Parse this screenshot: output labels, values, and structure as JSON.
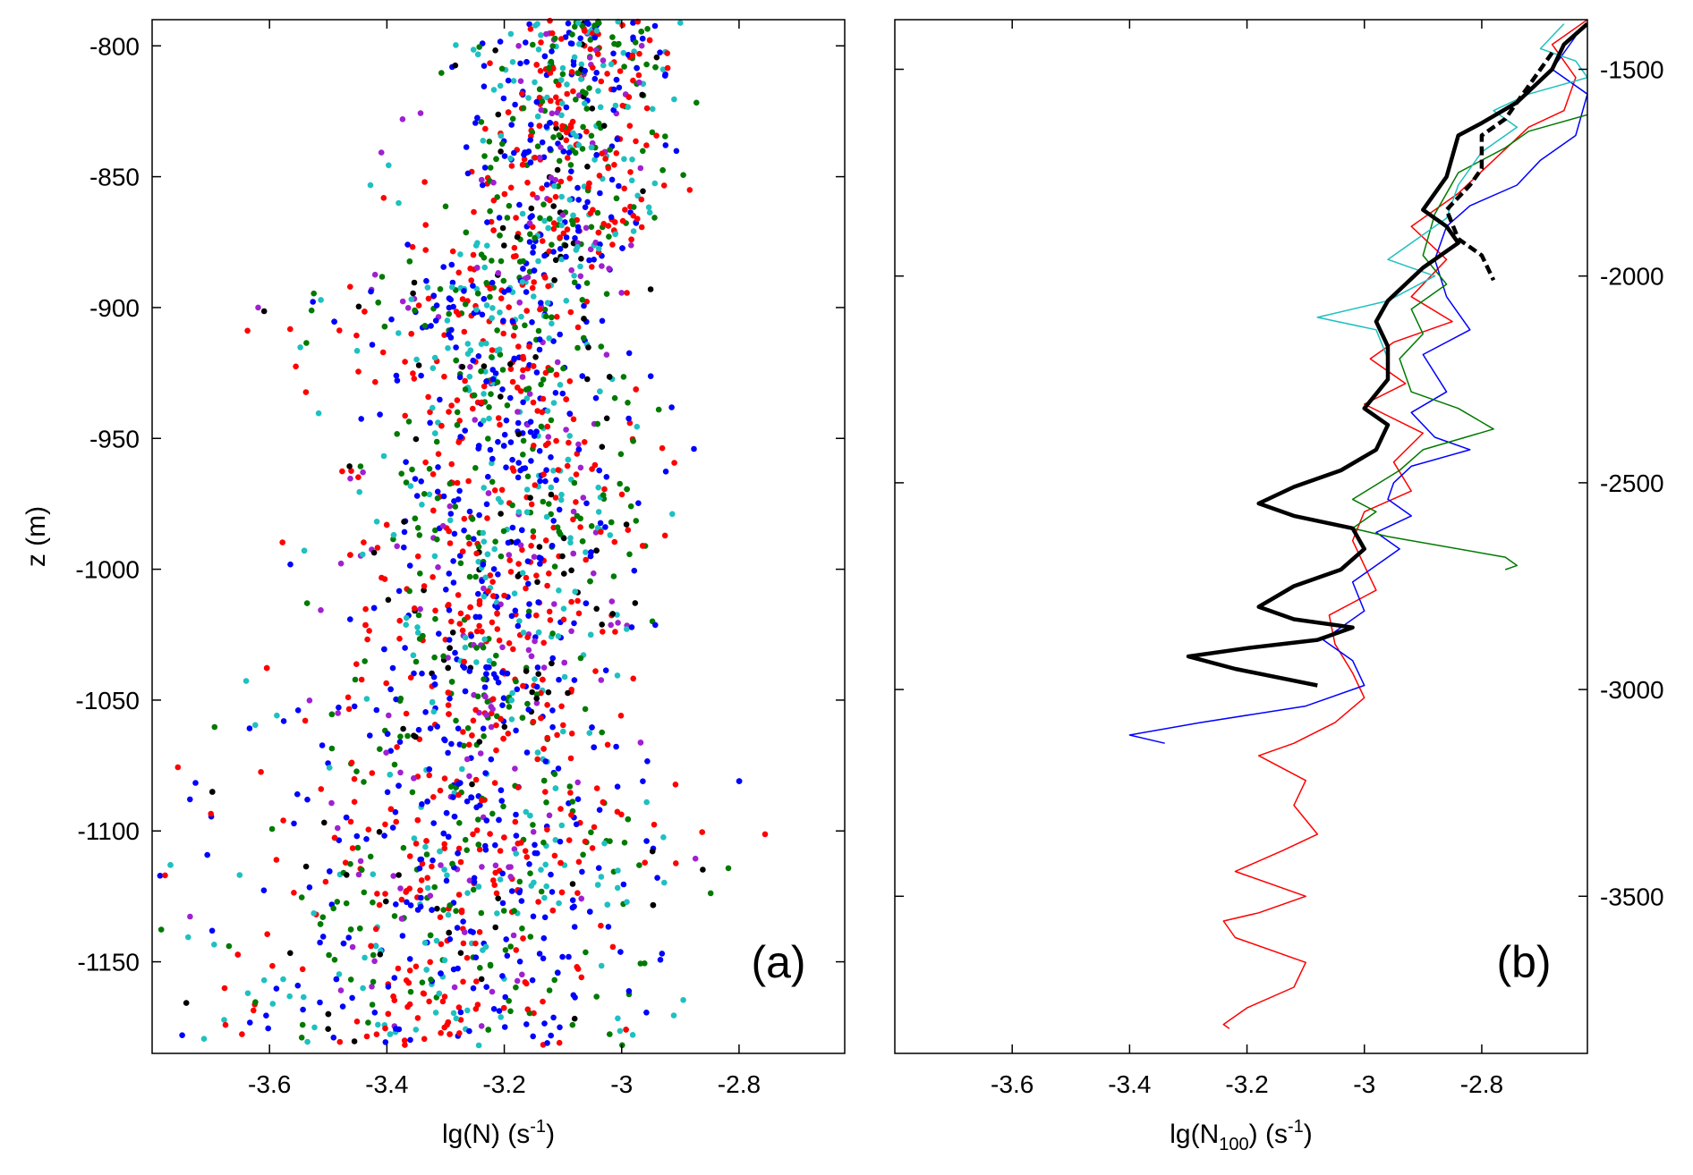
{
  "colors": {
    "black": "#000000",
    "red": "#ff0000",
    "blue": "#0000ff",
    "green": "#007a00",
    "cyan": "#1ec0c0",
    "magenta": "#a020d0"
  },
  "chart_data": [
    {
      "type": "scatter",
      "panel_label": "(a)",
      "xlabel": {
        "main": "lg(N)",
        "unit_pre": " (s",
        "unit_sup": "-1",
        "unit_post": ")"
      },
      "ylabel": "z (m)",
      "xlim": [
        -3.8,
        -2.62
      ],
      "ylim": [
        -1185,
        -790
      ],
      "xticks": [
        -3.6,
        -3.4,
        -3.2,
        -3.0,
        -2.8
      ],
      "xtick_labels": [
        "-3.6",
        "-3.4",
        "-3.2",
        "-3",
        "-2.8"
      ],
      "yticks": [
        -800,
        -850,
        -900,
        -950,
        -1000,
        -1050,
        -1100,
        -1150
      ],
      "ytick_labels": [
        "-800",
        "-850",
        "-900",
        "-950",
        "-1000",
        "-1050",
        "-1100",
        "-1150"
      ],
      "series_colors": [
        "red",
        "blue",
        "green",
        "cyan",
        "magenta",
        "black"
      ],
      "profile": {
        "z": [
          -790,
          -800,
          -820,
          -840,
          -850,
          -870,
          -880,
          -900,
          -920,
          -940,
          -950,
          -970,
          -1000,
          -1020,
          -1040,
          -1060,
          -1070,
          -1090,
          -1100,
          -1120,
          -1140,
          -1160,
          -1180
        ],
        "center": [
          -3.02,
          -3.05,
          -3.07,
          -3.1,
          -3.1,
          -3.08,
          -3.12,
          -3.22,
          -3.22,
          -3.15,
          -3.15,
          -3.15,
          -3.2,
          -3.2,
          -3.2,
          -3.22,
          -3.25,
          -3.2,
          -3.2,
          -3.22,
          -3.22,
          -3.3,
          -3.3
        ],
        "spread": [
          0.12,
          0.12,
          0.14,
          0.16,
          0.16,
          0.12,
          0.12,
          0.2,
          0.18,
          0.18,
          0.18,
          0.2,
          0.2,
          0.2,
          0.2,
          0.22,
          0.24,
          0.26,
          0.28,
          0.3,
          0.32,
          0.34,
          0.34
        ]
      }
    },
    {
      "type": "line",
      "panel_label": "(b)",
      "xlabel": {
        "main": "lg(N",
        "main_sub": "100",
        "unit_pre": ") (s",
        "unit_sup": "-1",
        "unit_post": ")"
      },
      "xlim": [
        -3.8,
        -2.62
      ],
      "ylim": [
        -3880,
        -1380
      ],
      "xticks": [
        -3.6,
        -3.4,
        -3.2,
        -3.0,
        -2.8
      ],
      "xtick_labels": [
        "-3.6",
        "-3.4",
        "-3.2",
        "-3",
        "-2.8"
      ],
      "yticks": [
        -1500,
        -2000,
        -2500,
        -3000,
        -3500
      ],
      "ytick_labels": [
        "-1500",
        "-2000",
        "-2500",
        "-3000",
        "-3500"
      ],
      "series": [
        {
          "name": "red",
          "color": "red",
          "width": 1.5,
          "dashed": false,
          "points": [
            [
              -2.62,
              -1380
            ],
            [
              -2.68,
              -1440
            ],
            [
              -2.64,
              -1520
            ],
            [
              -2.66,
              -1600
            ],
            [
              -2.72,
              -1640
            ],
            [
              -2.78,
              -1720
            ],
            [
              -2.84,
              -1800
            ],
            [
              -2.92,
              -1880
            ],
            [
              -2.86,
              -1960
            ],
            [
              -2.92,
              -2050
            ],
            [
              -2.85,
              -2110
            ],
            [
              -2.95,
              -2160
            ],
            [
              -2.99,
              -2200
            ],
            [
              -2.93,
              -2260
            ],
            [
              -3.0,
              -2310
            ],
            [
              -2.9,
              -2380
            ],
            [
              -2.95,
              -2450
            ],
            [
              -2.92,
              -2520
            ],
            [
              -3.0,
              -2570
            ],
            [
              -3.02,
              -2640
            ],
            [
              -3.0,
              -2700
            ],
            [
              -2.98,
              -2760
            ],
            [
              -3.06,
              -2820
            ],
            [
              -3.05,
              -2890
            ],
            [
              -3.02,
              -2960
            ],
            [
              -3.0,
              -3020
            ],
            [
              -3.05,
              -3080
            ],
            [
              -3.12,
              -3130
            ],
            [
              -3.18,
              -3160
            ],
            [
              -3.1,
              -3220
            ],
            [
              -3.12,
              -3280
            ],
            [
              -3.08,
              -3350
            ],
            [
              -3.14,
              -3390
            ],
            [
              -3.22,
              -3440
            ],
            [
              -3.1,
              -3500
            ],
            [
              -3.18,
              -3540
            ],
            [
              -3.24,
              -3560
            ],
            [
              -3.22,
              -3600
            ],
            [
              -3.1,
              -3660
            ],
            [
              -3.12,
              -3720
            ],
            [
              -3.2,
              -3770
            ],
            [
              -3.24,
              -3810
            ],
            [
              -3.23,
              -3820
            ]
          ]
        },
        {
          "name": "blue",
          "color": "blue",
          "width": 1.5,
          "dashed": false,
          "points": [
            [
              -2.64,
              -1420
            ],
            [
              -2.68,
              -1500
            ],
            [
              -2.62,
              -1560
            ],
            [
              -2.64,
              -1660
            ],
            [
              -2.7,
              -1720
            ],
            [
              -2.74,
              -1780
            ],
            [
              -2.82,
              -1830
            ],
            [
              -2.86,
              -1880
            ],
            [
              -2.88,
              -1960
            ],
            [
              -2.86,
              -2050
            ],
            [
              -2.82,
              -2130
            ],
            [
              -2.9,
              -2190
            ],
            [
              -2.86,
              -2280
            ],
            [
              -2.92,
              -2330
            ],
            [
              -2.88,
              -2390
            ],
            [
              -2.82,
              -2420
            ],
            [
              -2.92,
              -2460
            ],
            [
              -2.95,
              -2500
            ],
            [
              -2.96,
              -2540
            ],
            [
              -2.92,
              -2580
            ],
            [
              -2.98,
              -2620
            ],
            [
              -2.94,
              -2660
            ],
            [
              -2.98,
              -2700
            ],
            [
              -3.02,
              -2740
            ],
            [
              -3.0,
              -2810
            ],
            [
              -3.07,
              -2880
            ],
            [
              -3.02,
              -2930
            ],
            [
              -3.0,
              -2990
            ],
            [
              -3.1,
              -3040
            ],
            [
              -3.28,
              -3080
            ],
            [
              -3.4,
              -3110
            ],
            [
              -3.34,
              -3130
            ]
          ]
        },
        {
          "name": "green",
          "color": "green",
          "width": 1.5,
          "dashed": false,
          "points": [
            [
              -2.62,
              -1610
            ],
            [
              -2.72,
              -1650
            ],
            [
              -2.76,
              -1690
            ],
            [
              -2.84,
              -1750
            ],
            [
              -2.88,
              -1850
            ],
            [
              -2.9,
              -1950
            ],
            [
              -2.86,
              -2020
            ],
            [
              -2.92,
              -2080
            ],
            [
              -2.9,
              -2140
            ],
            [
              -2.94,
              -2200
            ],
            [
              -2.92,
              -2280
            ],
            [
              -2.84,
              -2320
            ],
            [
              -2.78,
              -2370
            ],
            [
              -2.9,
              -2420
            ],
            [
              -2.94,
              -2470
            ],
            [
              -3.02,
              -2540
            ],
            [
              -2.98,
              -2570
            ],
            [
              -3.02,
              -2610
            ],
            [
              -2.96,
              -2630
            ],
            [
              -2.76,
              -2680
            ],
            [
              -2.74,
              -2700
            ],
            [
              -2.76,
              -2710
            ]
          ]
        },
        {
          "name": "cyan",
          "color": "cyan",
          "width": 1.5,
          "dashed": false,
          "points": [
            [
              -2.66,
              -1390
            ],
            [
              -2.7,
              -1450
            ],
            [
              -2.64,
              -1480
            ],
            [
              -2.62,
              -1520
            ],
            [
              -2.72,
              -1560
            ],
            [
              -2.78,
              -1600
            ],
            [
              -2.74,
              -1640
            ],
            [
              -2.8,
              -1700
            ],
            [
              -2.84,
              -1780
            ],
            [
              -2.86,
              -1860
            ],
            [
              -2.92,
              -1920
            ],
            [
              -2.96,
              -1960
            ],
            [
              -2.88,
              -2000
            ],
            [
              -2.96,
              -2060
            ],
            [
              -3.08,
              -2100
            ],
            [
              -2.98,
              -2130
            ],
            [
              -2.96,
              -2200
            ]
          ]
        },
        {
          "name": "black-bold",
          "color": "black",
          "width": 4.5,
          "dashed": false,
          "points": [
            [
              -2.62,
              -1390
            ],
            [
              -2.66,
              -1440
            ],
            [
              -2.68,
              -1500
            ],
            [
              -2.74,
              -1580
            ],
            [
              -2.8,
              -1630
            ],
            [
              -2.84,
              -1660
            ],
            [
              -2.86,
              -1760
            ],
            [
              -2.9,
              -1840
            ],
            [
              -2.86,
              -1880
            ],
            [
              -2.84,
              -1920
            ],
            [
              -2.9,
              -1980
            ],
            [
              -2.96,
              -2060
            ],
            [
              -2.98,
              -2110
            ],
            [
              -2.96,
              -2170
            ],
            [
              -2.96,
              -2250
            ],
            [
              -3.0,
              -2320
            ],
            [
              -2.96,
              -2360
            ],
            [
              -2.98,
              -2420
            ],
            [
              -3.04,
              -2470
            ],
            [
              -3.12,
              -2510
            ],
            [
              -3.18,
              -2550
            ],
            [
              -3.12,
              -2580
            ],
            [
              -3.02,
              -2610
            ],
            [
              -3.0,
              -2660
            ],
            [
              -3.04,
              -2710
            ],
            [
              -3.12,
              -2750
            ],
            [
              -3.18,
              -2800
            ],
            [
              -3.12,
              -2830
            ],
            [
              -3.02,
              -2850
            ],
            [
              -3.08,
              -2880
            ],
            [
              -3.2,
              -2900
            ],
            [
              -3.3,
              -2920
            ],
            [
              -3.22,
              -2950
            ],
            [
              -3.08,
              -2990
            ]
          ]
        },
        {
          "name": "black-dashed",
          "color": "black",
          "width": 4.5,
          "dashed": true,
          "points": [
            [
              -2.68,
              -1460
            ],
            [
              -2.72,
              -1540
            ],
            [
              -2.76,
              -1620
            ],
            [
              -2.8,
              -1660
            ],
            [
              -2.8,
              -1740
            ],
            [
              -2.82,
              -1780
            ],
            [
              -2.86,
              -1840
            ],
            [
              -2.84,
              -1910
            ],
            [
              -2.8,
              -1950
            ],
            [
              -2.78,
              -2010
            ]
          ]
        }
      ]
    }
  ]
}
